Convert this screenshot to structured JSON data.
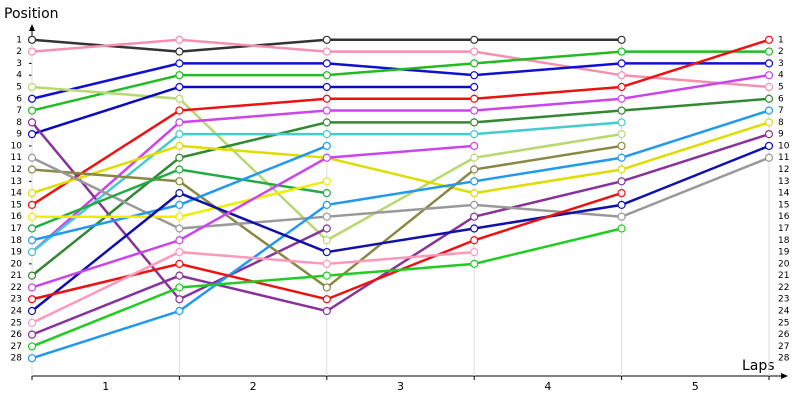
{
  "chart_data": {
    "type": "line",
    "y_label": "Position",
    "x_label": "Laps",
    "x": [
      0,
      1,
      2,
      3,
      4,
      5
    ],
    "xlim": [
      0,
      5
    ],
    "xticks": [
      {
        "value": 0.5,
        "label": "1"
      },
      {
        "value": 1.5,
        "label": "2"
      },
      {
        "value": 2.5,
        "label": "3"
      },
      {
        "value": 3.5,
        "label": "4"
      },
      {
        "value": 4.5,
        "label": "5"
      }
    ],
    "ylim": [
      29,
      0
    ],
    "yticks": [
      1,
      2,
      3,
      4,
      5,
      6,
      7,
      8,
      9,
      10,
      11,
      12,
      13,
      14,
      15,
      16,
      17,
      18,
      19,
      20,
      21,
      22,
      23,
      24,
      25,
      26,
      27,
      28
    ],
    "grid": true,
    "series": [
      {
        "color": "#333333",
        "values": [
          1,
          2,
          1,
          1,
          1,
          null
        ]
      },
      {
        "color": "#f590b0",
        "values": [
          2,
          1,
          2,
          2,
          4,
          5
        ]
      },
      {
        "color": "#1010d0",
        "values": [
          6,
          3,
          3,
          4,
          3,
          3
        ]
      },
      {
        "color": "#22bb22",
        "values": [
          7,
          4,
          4,
          3,
          2,
          2
        ]
      },
      {
        "color": "#b8d870",
        "values": [
          5,
          6,
          18,
          11,
          9,
          null
        ]
      },
      {
        "color": "#0a0ac0",
        "values": [
          9,
          5,
          5,
          5,
          null,
          null
        ]
      },
      {
        "color": "#ee1111",
        "values": [
          15,
          7,
          6,
          6,
          5,
          1
        ]
      },
      {
        "color": "#cc44ee",
        "values": [
          19,
          8,
          7,
          7,
          6,
          4
        ]
      },
      {
        "color": "#883399",
        "values": [
          8,
          23,
          17,
          null,
          null,
          null
        ]
      },
      {
        "color": "#883399",
        "values": [
          26,
          21,
          24,
          16,
          13,
          9
        ]
      },
      {
        "color": "#338833",
        "values": [
          21,
          11,
          8,
          8,
          7,
          6
        ]
      },
      {
        "color": "#44cccc",
        "values": [
          19,
          9,
          9,
          9,
          8,
          null
        ]
      },
      {
        "color": "#dddd00",
        "values": [
          14,
          10,
          11,
          14,
          12,
          8
        ]
      },
      {
        "color": "#888844",
        "values": [
          12,
          13,
          22,
          12,
          10,
          null
        ]
      },
      {
        "color": "#999999",
        "values": [
          11,
          17,
          16,
          15,
          16,
          11
        ]
      },
      {
        "color": "#22aa44",
        "values": [
          17,
          12,
          14,
          null,
          null,
          null
        ]
      },
      {
        "color": "#2299ee",
        "values": [
          18,
          15,
          10,
          null,
          null,
          null
        ]
      },
      {
        "color": "#2299ee",
        "values": [
          28,
          24,
          15,
          13,
          11,
          7
        ]
      },
      {
        "color": "#eeee00",
        "values": [
          16,
          16,
          13,
          null,
          null,
          null
        ]
      },
      {
        "color": "#1111aa",
        "values": [
          24,
          14,
          19,
          17,
          15,
          10
        ]
      },
      {
        "color": "#ee1111",
        "values": [
          23,
          20,
          23,
          18,
          14,
          null
        ]
      },
      {
        "color": "#ff99bb",
        "values": [
          25,
          19,
          20,
          19,
          null,
          null
        ]
      },
      {
        "color": "#22cc22",
        "values": [
          27,
          22,
          21,
          20,
          17,
          null
        ]
      },
      {
        "color": "#cc44ee",
        "values": [
          22,
          18,
          11,
          10,
          null,
          null
        ]
      }
    ]
  }
}
